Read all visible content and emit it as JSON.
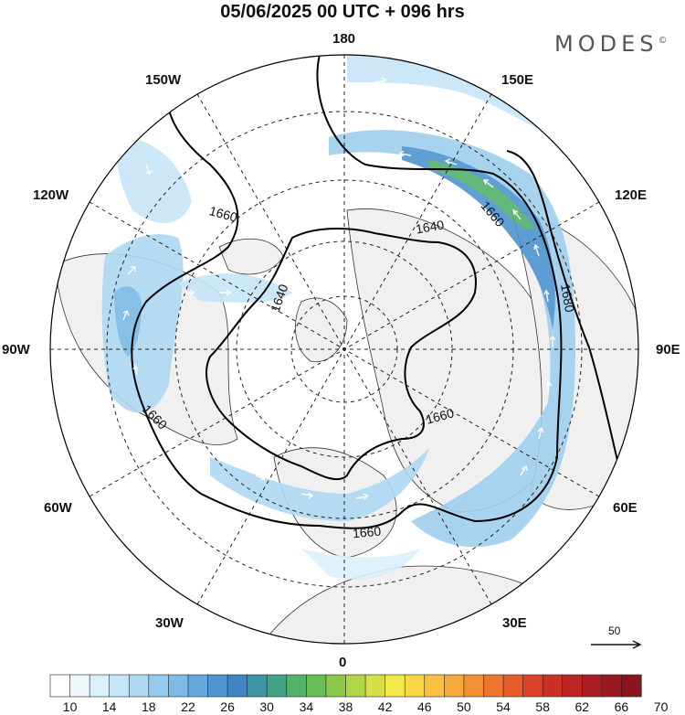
{
  "title": "05/06/2025  00 UTC  + 096 hrs",
  "brand": "MODES",
  "brand_mark": "©",
  "longitude_labels": {
    "top": "180",
    "bottom": "0",
    "left": "90W",
    "right": "90E",
    "upper_left_1": "150W",
    "upper_left_2": "120W",
    "lower_left_1": "60W",
    "lower_left_2": "30W",
    "upper_right_1": "150E",
    "upper_right_2": "120E",
    "lower_right_1": "60E",
    "lower_right_2": "30E"
  },
  "contour_labels": [
    "1660",
    "1640",
    "1640",
    "1660",
    "1680",
    "1660",
    "1660",
    "1660"
  ],
  "reference_vector": {
    "label": "50"
  },
  "colorbar": {
    "ticks": [
      "10",
      "14",
      "18",
      "22",
      "26",
      "30",
      "34",
      "38",
      "42",
      "46",
      "50",
      "54",
      "58",
      "62",
      "66",
      "70"
    ],
    "colors": [
      "#ffffff",
      "#eef7fc",
      "#dcf0fa",
      "#c6e6f7",
      "#aed9f2",
      "#95cbee",
      "#7bbbe6",
      "#64a8dc",
      "#4f95d0",
      "#3f86c3",
      "#3b95a2",
      "#43a386",
      "#54b16c",
      "#69bd55",
      "#8cc94b",
      "#b1d546",
      "#d4e044",
      "#f3e94a",
      "#f9d846",
      "#f8c140",
      "#f6a93b",
      "#f39035",
      "#ee752f",
      "#e65a2b",
      "#da4128",
      "#cc2f26",
      "#bd2424",
      "#ab1d22",
      "#9a1820",
      "#8a141e"
    ]
  }
}
